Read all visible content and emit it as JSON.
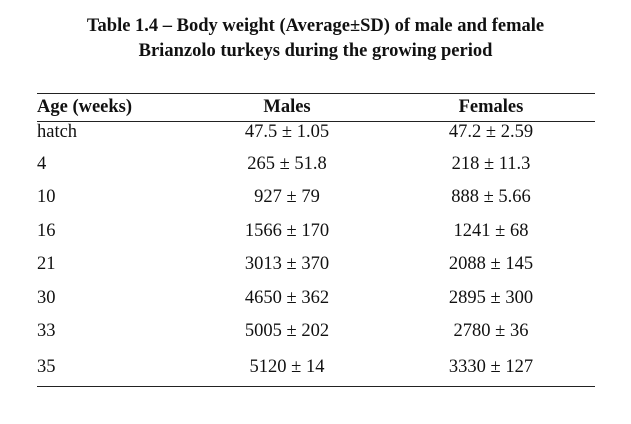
{
  "caption": {
    "line1": "Table 1.4 – Body weight (Average±SD) of male and female",
    "line2": "Brianzolo turkeys during the growing period"
  },
  "table": {
    "headers": [
      "Age (weeks)",
      "Males",
      "Females"
    ],
    "rows": [
      {
        "age": "hatch",
        "males": "47.5 ± 1.05",
        "females": "47.2 ± 2.59"
      },
      {
        "age": "4",
        "males": "265 ± 51.8",
        "females": "218 ± 11.3"
      },
      {
        "age": "10",
        "males": "927 ± 79",
        "females": "888 ± 5.66"
      },
      {
        "age": "16",
        "males": "1566 ± 170",
        "females": "1241 ± 68"
      },
      {
        "age": "21",
        "males": "3013 ± 370",
        "females": "2088 ± 145"
      },
      {
        "age": "30",
        "males": "4650 ± 362",
        "females": "2895 ± 300"
      },
      {
        "age": "33",
        "males": "5005 ± 202",
        "females": "2780 ± 36"
      },
      {
        "age": "35",
        "males": "5120 ± 14",
        "females": "3330 ± 127"
      }
    ]
  }
}
